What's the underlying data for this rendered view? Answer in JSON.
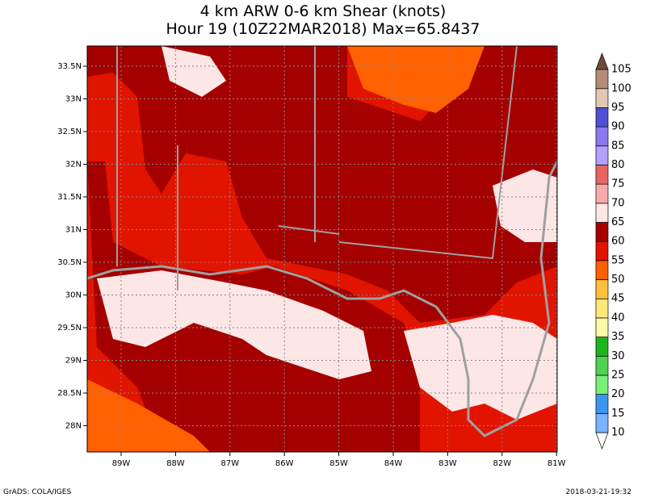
{
  "title": [
    "4 km ARW 0-6 km Shear (knots)",
    "Hour 19 (10Z22MAR2018) Max=65.8437"
  ],
  "lat_labels": [
    "33.5N",
    "33N",
    "32.5N",
    "32N",
    "31.5N",
    "31N",
    "30.5N",
    "30N",
    "29.5N",
    "29N",
    "28.5N",
    "28N"
  ],
  "lon_labels": [
    "89W",
    "88W",
    "87W",
    "86W",
    "85W",
    "84W",
    "83W",
    "82W",
    "81W"
  ],
  "colorbar": {
    "labels": [
      10,
      15,
      20,
      25,
      30,
      35,
      40,
      45,
      50,
      55,
      60,
      65,
      70,
      75,
      80,
      85,
      90,
      95,
      100,
      105
    ],
    "colors": [
      "#ffffff",
      "#78b4ff",
      "#3c96f0",
      "#78f078",
      "#50d250",
      "#1eb41e",
      "#fffaaa",
      "#ffe878",
      "#ffc03c",
      "#ff6000",
      "#e11400",
      "#a50000",
      "#fde6e6",
      "#f8aaaa",
      "#e66464",
      "#b4a0ff",
      "#8c78f0",
      "#5050d2",
      "#e1c8b4",
      "#b48c78",
      "#6e4a3c"
    ]
  },
  "footer": {
    "left": "GrADS: COLA/IGES",
    "right": "2018-03-21-19:32"
  }
}
